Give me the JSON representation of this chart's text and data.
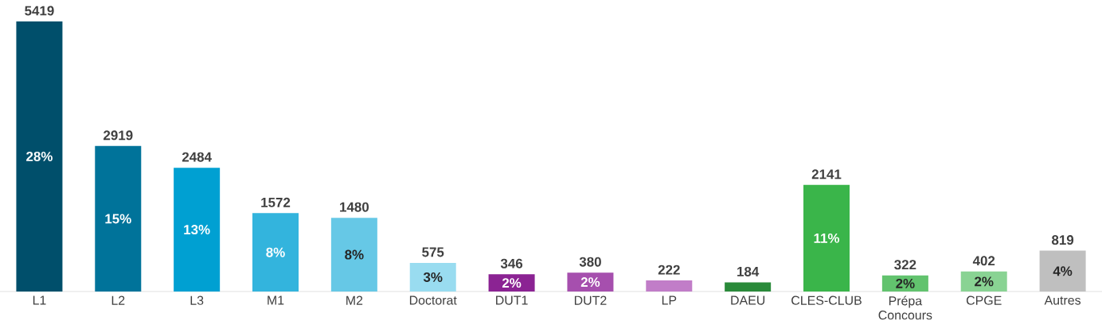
{
  "chart_data": {
    "type": "bar",
    "categories": [
      "L1",
      "L2",
      "L3",
      "M1",
      "M2",
      "Doctorat",
      "DUT1",
      "DUT2",
      "LP",
      "DAEU",
      "CLES-CLUB",
      "Prépa Concours",
      "CPGE",
      "Autres"
    ],
    "values": [
      5419,
      2919,
      2484,
      1572,
      1480,
      575,
      346,
      380,
      222,
      184,
      2141,
      322,
      402,
      819
    ],
    "colors": [
      "#004f6b",
      "#00739a",
      "#00a0d2",
      "#33b4dd",
      "#66c8e6",
      "#99dcf0",
      "#8b2393",
      "#a64fae",
      "#c17dc8",
      "#2a8a3a",
      "#3ab54a",
      "#62c36e",
      "#89d393",
      "#bfbfbf"
    ],
    "data_labels": true,
    "annotations": [
      "28%",
      "15%",
      "13%",
      "8%",
      "8%",
      "3%",
      "2%",
      "2%",
      "11%",
      "2%",
      "2%",
      "4%"
    ]
  }
}
